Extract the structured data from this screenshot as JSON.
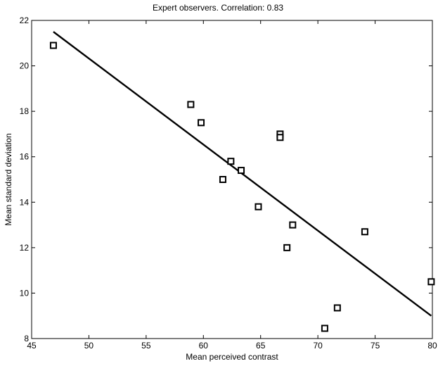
{
  "chart_data": {
    "type": "scatter",
    "title": "Expert observers. Correlation: 0.83",
    "xlabel": "Mean perceived contrast",
    "ylabel": "Mean standard deviation",
    "xlim": [
      45,
      80
    ],
    "ylim": [
      8,
      22
    ],
    "xticks": [
      45,
      50,
      55,
      60,
      65,
      70,
      75,
      80
    ],
    "yticks": [
      8,
      10,
      12,
      14,
      16,
      18,
      20,
      22
    ],
    "grid": false,
    "marker": "square",
    "points": [
      {
        "x": 46.9,
        "y": 20.9
      },
      {
        "x": 58.9,
        "y": 18.3
      },
      {
        "x": 59.8,
        "y": 17.5
      },
      {
        "x": 61.7,
        "y": 15.0
      },
      {
        "x": 62.4,
        "y": 15.8
      },
      {
        "x": 63.3,
        "y": 15.4
      },
      {
        "x": 64.8,
        "y": 13.8
      },
      {
        "x": 66.7,
        "y": 17.0
      },
      {
        "x": 66.7,
        "y": 16.85
      },
      {
        "x": 67.3,
        "y": 12.0
      },
      {
        "x": 67.8,
        "y": 13.0
      },
      {
        "x": 70.6,
        "y": 8.45
      },
      {
        "x": 71.7,
        "y": 9.35
      },
      {
        "x": 74.1,
        "y": 12.7
      },
      {
        "x": 79.9,
        "y": 10.5
      }
    ],
    "fit_line": {
      "x": [
        46.9,
        79.9
      ],
      "y": [
        21.5,
        9.0
      ]
    },
    "colors": {
      "marks": "#000000",
      "background": "#ffffff"
    }
  }
}
